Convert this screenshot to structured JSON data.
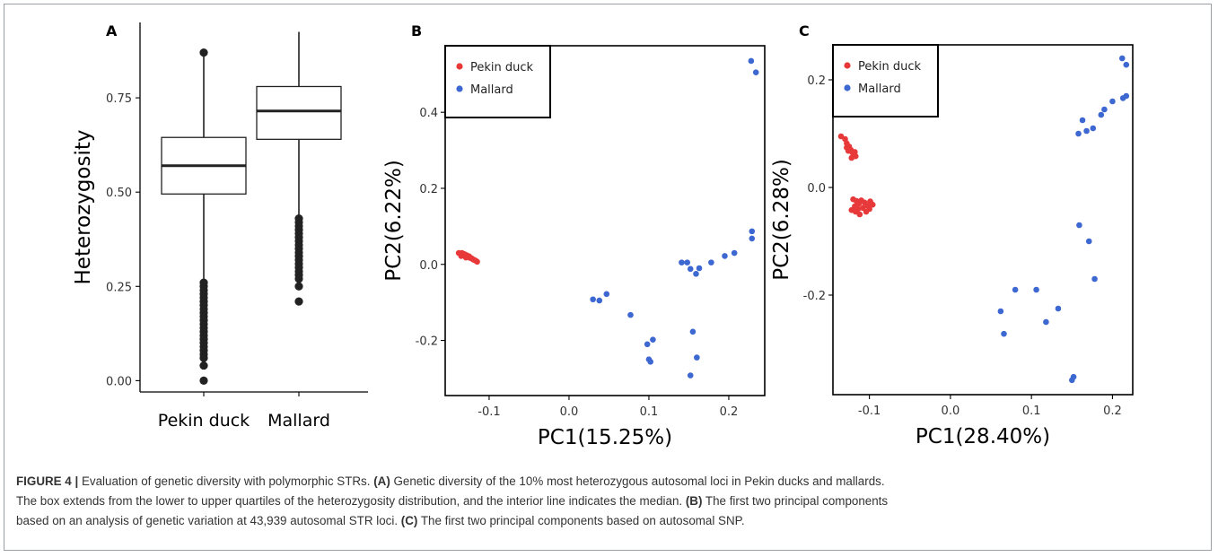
{
  "chart_data": [
    {
      "type": "box",
      "panel_label": "A",
      "ylabel": "Heterozygosity",
      "categories": [
        "Pekin duck",
        "Mallard"
      ],
      "yticks": [
        "0.00",
        "0.25",
        "0.50",
        "0.75"
      ],
      "ylim": [
        -0.03,
        0.95
      ],
      "boxes": [
        {
          "name": "Pekin duck",
          "min": 0.27,
          "q1": 0.495,
          "median": 0.57,
          "q3": 0.645,
          "max": 0.87,
          "outliers": [
            0.26,
            0.25,
            0.24,
            0.23,
            0.22,
            0.21,
            0.2,
            0.19,
            0.18,
            0.17,
            0.16,
            0.15,
            0.14,
            0.13,
            0.12,
            0.11,
            0.1,
            0.09,
            0.08,
            0.07,
            0.06,
            0.04,
            0.0,
            0.87
          ]
        },
        {
          "name": "Mallard",
          "min": 0.435,
          "q1": 0.64,
          "median": 0.715,
          "q3": 0.78,
          "max": 0.925,
          "outliers": [
            0.43,
            0.42,
            0.41,
            0.4,
            0.39,
            0.38,
            0.37,
            0.36,
            0.35,
            0.34,
            0.33,
            0.32,
            0.31,
            0.3,
            0.29,
            0.28,
            0.27,
            0.25,
            0.21
          ]
        }
      ],
      "grid": false
    },
    {
      "type": "scatter",
      "panel_label": "B",
      "xlabel": "PC1(15.25%)",
      "ylabel": "PC2(6.22%)",
      "xlim": [
        -0.155,
        0.245
      ],
      "ylim": [
        -0.345,
        0.575
      ],
      "xticks": [
        "-0.1",
        "0.0",
        "0.1",
        "0.2"
      ],
      "yticks": [
        "-0.2",
        "0.0",
        "0.2",
        "0.4"
      ],
      "legend_position": "top-left",
      "grid": false,
      "series": [
        {
          "name": "Pekin duck",
          "color": "#e8393a",
          "points": [
            [
              -0.138,
              0.03
            ],
            [
              -0.136,
              0.028
            ],
            [
              -0.134,
              0.03
            ],
            [
              -0.133,
              0.025
            ],
            [
              -0.131,
              0.027
            ],
            [
              -0.13,
              0.022
            ],
            [
              -0.128,
              0.024
            ],
            [
              -0.127,
              0.02
            ],
            [
              -0.125,
              0.021
            ],
            [
              -0.124,
              0.017
            ],
            [
              -0.122,
              0.016
            ],
            [
              -0.12,
              0.013
            ],
            [
              -0.119,
              0.012
            ],
            [
              -0.117,
              0.01
            ],
            [
              -0.115,
              0.007
            ],
            [
              -0.135,
              0.022
            ],
            [
              -0.129,
              0.018
            ]
          ]
        },
        {
          "name": "Mallard",
          "color": "#3d67d1",
          "points": [
            [
              0.228,
              0.535
            ],
            [
              0.234,
              0.505
            ],
            [
              0.229,
              0.087
            ],
            [
              0.229,
              0.068
            ],
            [
              0.207,
              0.03
            ],
            [
              0.195,
              0.022
            ],
            [
              0.178,
              0.005
            ],
            [
              0.159,
              -0.025
            ],
            [
              0.152,
              -0.012
            ],
            [
              0.148,
              0.005
            ],
            [
              0.141,
              0.005
            ],
            [
              0.163,
              -0.01
            ],
            [
              0.03,
              -0.092
            ],
            [
              0.038,
              -0.095
            ],
            [
              0.047,
              -0.078
            ],
            [
              0.077,
              -0.133
            ],
            [
              0.098,
              -0.21
            ],
            [
              0.105,
              -0.198
            ],
            [
              0.1,
              -0.25
            ],
            [
              0.102,
              -0.256
            ],
            [
              0.155,
              -0.177
            ],
            [
              0.16,
              -0.245
            ],
            [
              0.152,
              -0.292
            ]
          ]
        }
      ]
    },
    {
      "type": "scatter",
      "panel_label": "C",
      "xlabel": "PC1(28.40%)",
      "ylabel": "PC2(6.28%)",
      "xlim": [
        -0.145,
        0.225
      ],
      "ylim": [
        -0.385,
        0.265
      ],
      "xticks": [
        "-0.1",
        "0.0",
        "0.1",
        "0.2"
      ],
      "yticks": [
        "-0.2",
        "0.0",
        "0.2"
      ],
      "legend_position": "top-left",
      "grid": false,
      "series": [
        {
          "name": "Pekin duck",
          "color": "#e8393a",
          "points": [
            [
              -0.135,
              0.095
            ],
            [
              -0.13,
              0.09
            ],
            [
              -0.128,
              0.082
            ],
            [
              -0.125,
              0.076
            ],
            [
              -0.123,
              0.07
            ],
            [
              -0.121,
              0.065
            ],
            [
              -0.126,
              0.068
            ],
            [
              -0.119,
              0.06
            ],
            [
              -0.117,
              0.058
            ],
            [
              -0.122,
              0.055
            ],
            [
              -0.128,
              0.074
            ],
            [
              -0.118,
              0.066
            ],
            [
              -0.12,
              -0.022
            ],
            [
              -0.116,
              -0.025
            ],
            [
              -0.113,
              -0.03
            ],
            [
              -0.11,
              -0.024
            ],
            [
              -0.106,
              -0.028
            ],
            [
              -0.102,
              -0.034
            ],
            [
              -0.099,
              -0.026
            ],
            [
              -0.118,
              -0.035
            ],
            [
              -0.114,
              -0.04
            ],
            [
              -0.108,
              -0.038
            ],
            [
              -0.104,
              -0.045
            ],
            [
              -0.117,
              -0.045
            ],
            [
              -0.112,
              -0.05
            ],
            [
              -0.1,
              -0.04
            ],
            [
              -0.096,
              -0.032
            ],
            [
              -0.122,
              -0.042
            ]
          ]
        },
        {
          "name": "Mallard",
          "color": "#3d67d1",
          "points": [
            [
              0.212,
              0.24
            ],
            [
              0.217,
              0.228
            ],
            [
              0.217,
              0.17
            ],
            [
              0.213,
              0.166
            ],
            [
              0.2,
              0.16
            ],
            [
              0.19,
              0.145
            ],
            [
              0.186,
              0.135
            ],
            [
              0.176,
              0.11
            ],
            [
              0.168,
              0.105
            ],
            [
              0.163,
              0.125
            ],
            [
              0.158,
              0.1
            ],
            [
              0.171,
              -0.1
            ],
            [
              0.159,
              -0.07
            ],
            [
              0.178,
              -0.17
            ],
            [
              0.08,
              -0.19
            ],
            [
              0.106,
              -0.19
            ],
            [
              0.062,
              -0.23
            ],
            [
              0.066,
              -0.272
            ],
            [
              0.133,
              -0.225
            ],
            [
              0.118,
              -0.25
            ],
            [
              0.152,
              -0.352
            ],
            [
              0.15,
              -0.358
            ]
          ]
        }
      ]
    }
  ],
  "caption": {
    "lines": [
      [
        {
          "text": "FIGURE 4 | ",
          "bold": true
        },
        {
          "text": "Evaluation of genetic diversity with polymorphic STRs. ",
          "bold": false
        },
        {
          "text": "(A)",
          "bold": true
        },
        {
          "text": " Genetic diversity of the 10% most heterozygous autosomal loci in Pekin ducks and mallards.",
          "bold": false
        }
      ],
      [
        {
          "text": "The box extends from the lower to upper quartiles of the heterozygosity distribution, and the interior line indicates the median. ",
          "bold": false
        },
        {
          "text": "(B)",
          "bold": true
        },
        {
          "text": " The first two principal components",
          "bold": false
        }
      ],
      [
        {
          "text": "based on an analysis of genetic variation at 43,939 autosomal STR loci. ",
          "bold": false
        },
        {
          "text": "(C)",
          "bold": true
        },
        {
          "text": " The first two principal components based on autosomal SNP.",
          "bold": false
        }
      ]
    ]
  }
}
